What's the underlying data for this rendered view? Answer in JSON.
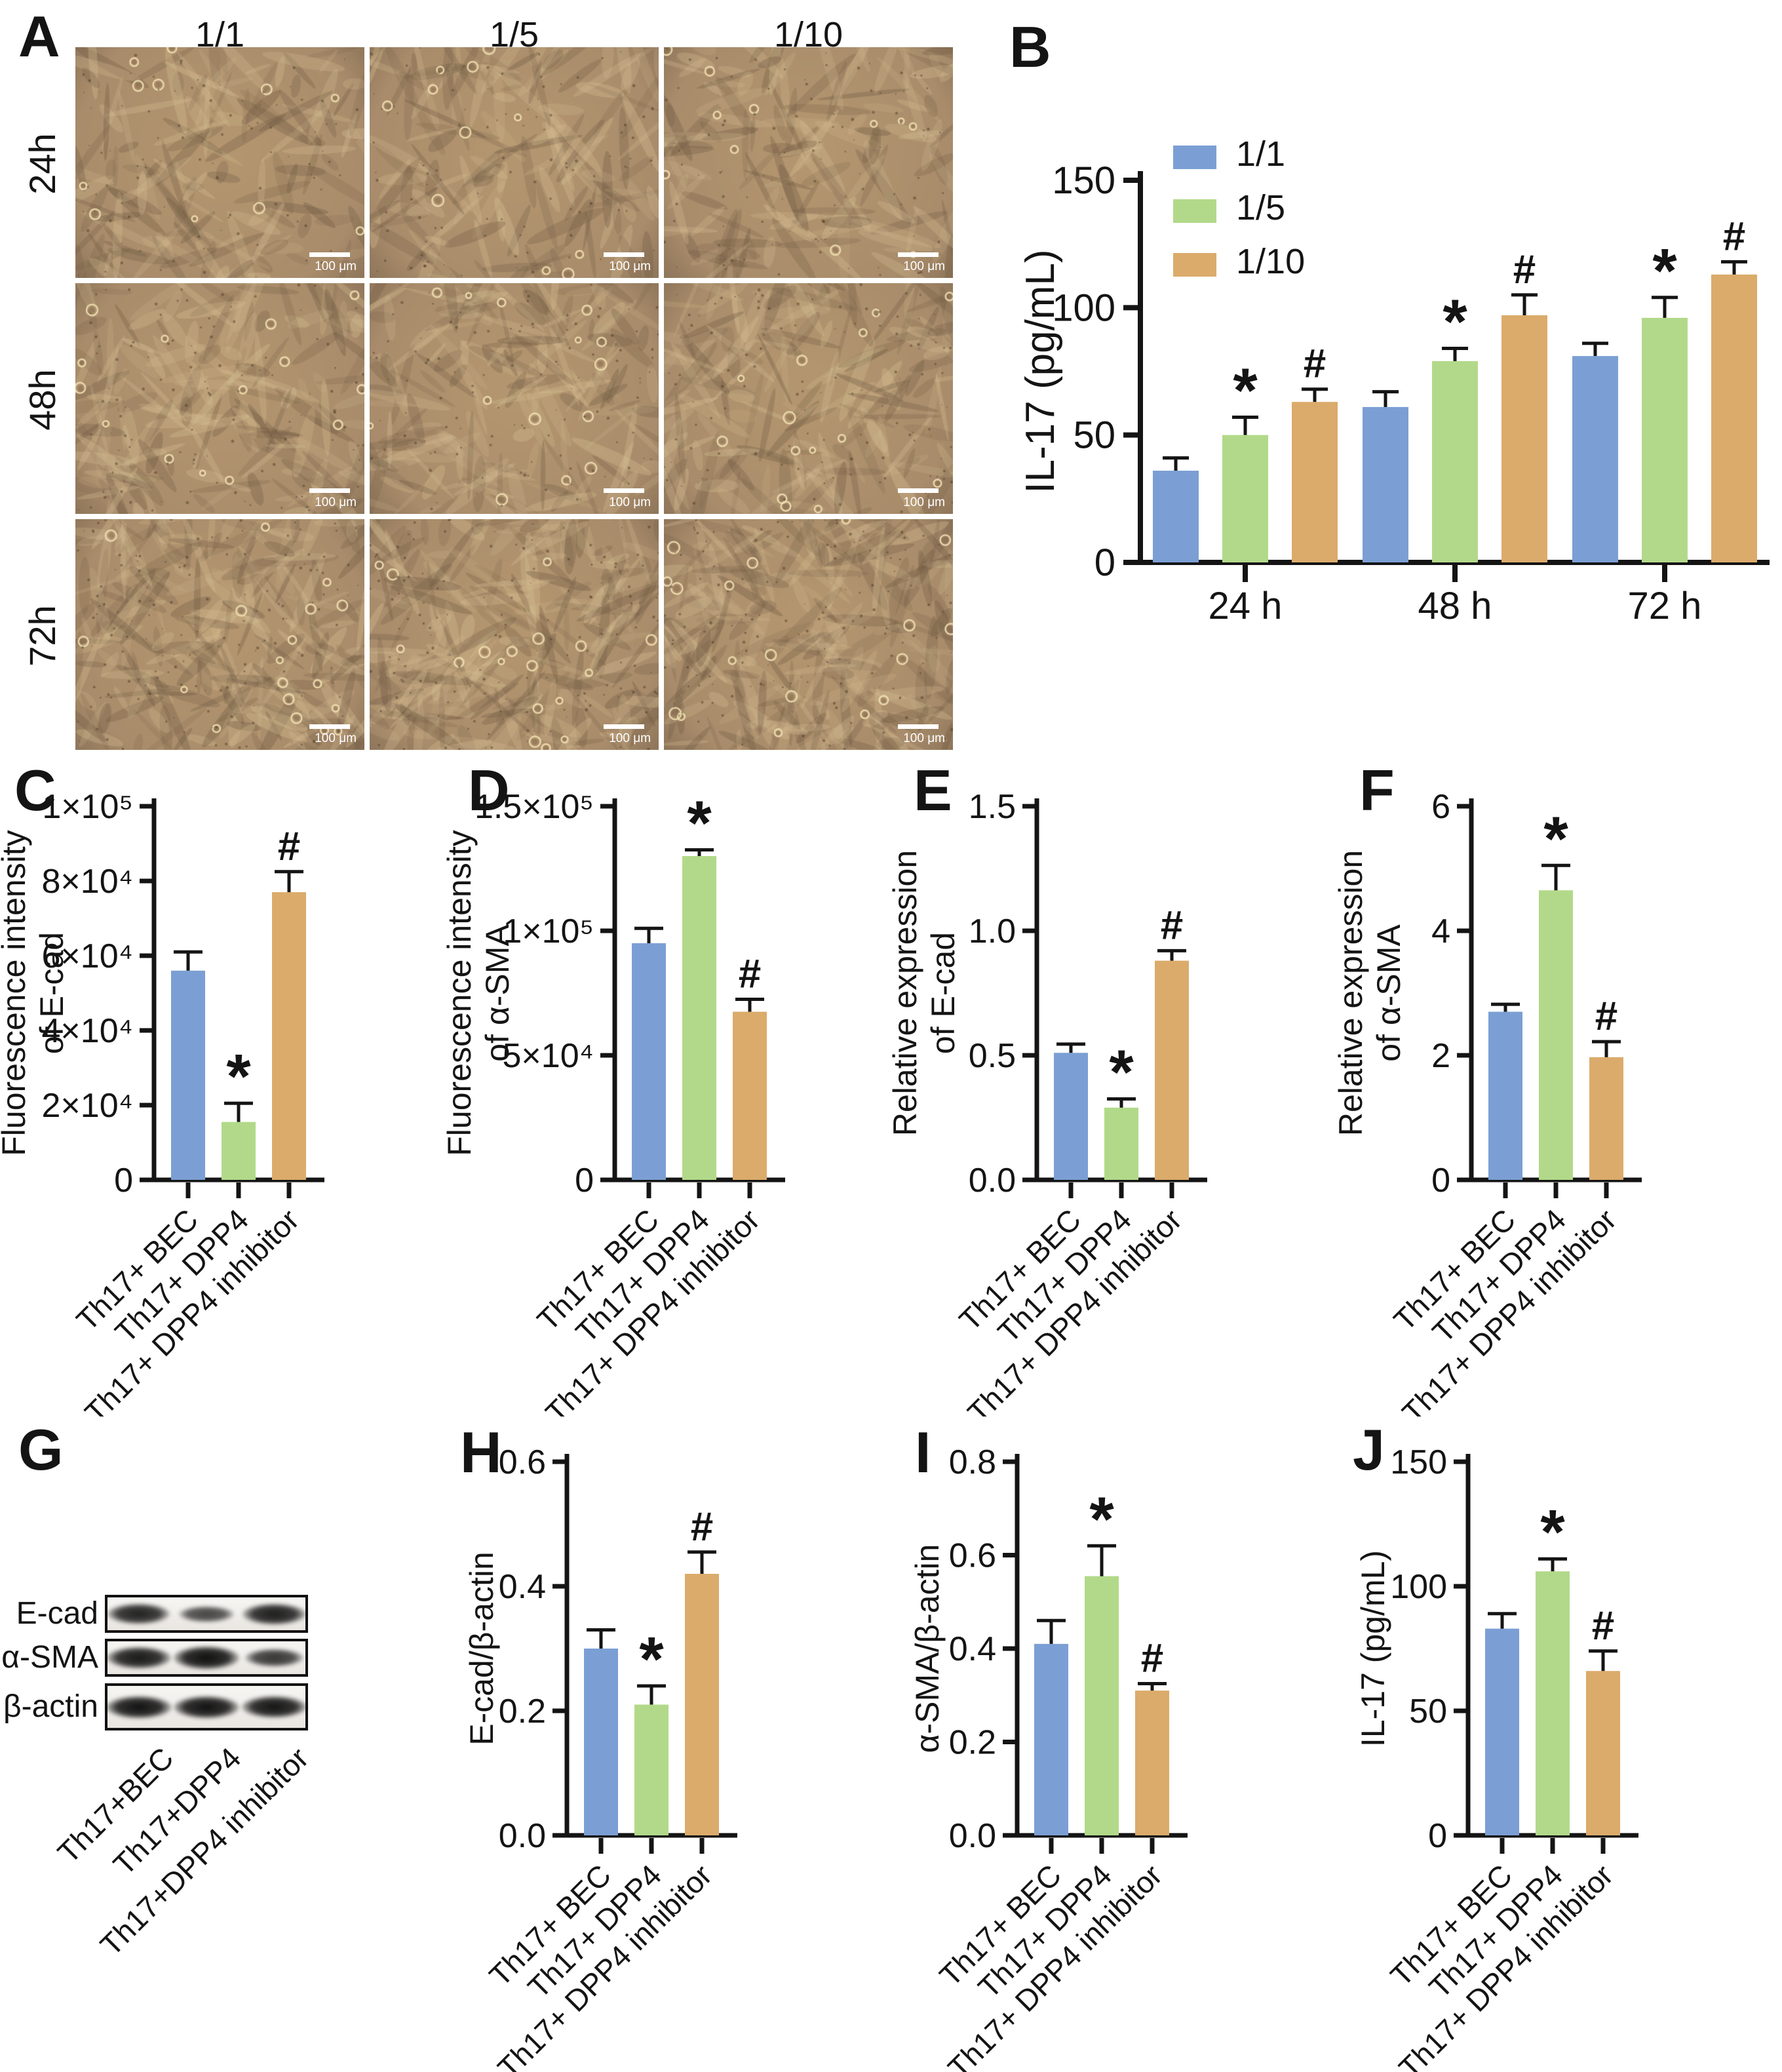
{
  "figure": {
    "background": "#ffffff"
  },
  "colors": {
    "group_blue": "#7B9FD4",
    "group_green": "#B2D989",
    "group_orange": "#DBAB6B",
    "axis": "#141414",
    "micro_base": "#a98c6b",
    "micro_dark": "#6e5942",
    "micro_light": "#d8c195"
  },
  "panel_a": {
    "label": "A",
    "column_headers": [
      "1/1",
      "1/5",
      "1/10"
    ],
    "row_labels": [
      "24h",
      "48h",
      "72h"
    ],
    "scale_bar_text": "100 μm"
  },
  "panel_g": {
    "label": "G",
    "row_labels": [
      "E-cad",
      "α-SMA",
      "β-actin"
    ],
    "lane_labels": [
      "Th17+BEC",
      "Th17+DPP4",
      "Th17+DPP4 inhibitor"
    ],
    "band_intensities": [
      [
        0.8,
        0.45,
        0.85
      ],
      [
        0.88,
        0.97,
        0.6
      ],
      [
        0.95,
        0.95,
        0.93
      ]
    ]
  },
  "chart_data": [
    {
      "id": "B",
      "label": "B",
      "type": "bar",
      "grouped": true,
      "ylabel": [
        "IL-17 (pg/mL)"
      ],
      "ylim": [
        0,
        150
      ],
      "ytick_values": [
        0,
        50,
        100,
        150
      ],
      "ytick_labels": [
        "0",
        "50",
        "100",
        "150"
      ],
      "categories": [
        "24 h",
        "48 h",
        "72 h"
      ],
      "legend_position": "top-left",
      "series": [
        {
          "name": "1/1",
          "color": "group_blue",
          "values": [
            36,
            61,
            81
          ],
          "errors": [
            5,
            6,
            5
          ],
          "annotations": [
            "",
            "",
            ""
          ]
        },
        {
          "name": "1/5",
          "color": "group_green",
          "values": [
            50,
            79,
            96
          ],
          "errors": [
            7,
            5,
            8
          ],
          "annotations": [
            "*",
            "*",
            "*"
          ]
        },
        {
          "name": "1/10",
          "color": "group_orange",
          "values": [
            63,
            97,
            113
          ],
          "errors": [
            5,
            8,
            5
          ],
          "annotations": [
            "#",
            "#",
            "#"
          ]
        }
      ]
    },
    {
      "id": "C",
      "label": "C",
      "type": "bar",
      "ylabel": [
        "Fluorescence intensity",
        "of E-cad"
      ],
      "ylim": [
        0,
        100000
      ],
      "ytick_values": [
        0,
        20000,
        40000,
        60000,
        80000,
        100000
      ],
      "ytick_labels": [
        "0",
        "2×10⁴",
        "4×10⁴",
        "6×10⁴",
        "8×10⁴",
        "1×10⁵"
      ],
      "categories": [
        "Th17+ BEC",
        "Th17+ DPP4",
        "Th17+ DPP4 inhibitor"
      ],
      "bars": [
        {
          "color": "group_blue",
          "value": 56000,
          "error": 5000,
          "annotation": ""
        },
        {
          "color": "group_green",
          "value": 15500,
          "error": 5000,
          "annotation": "*"
        },
        {
          "color": "group_orange",
          "value": 77000,
          "error": 5500,
          "annotation": "#"
        }
      ]
    },
    {
      "id": "D",
      "label": "D",
      "type": "bar",
      "ylabel": [
        "Fluorescence intensity",
        "of α-SMA"
      ],
      "ylim": [
        0,
        150000
      ],
      "ytick_values": [
        0,
        50000,
        100000,
        150000
      ],
      "ytick_labels": [
        "0",
        "5×10⁴",
        "1×10⁵",
        "1.5×10⁵"
      ],
      "categories": [
        "Th17+ BEC",
        "Th17+ DPP4",
        "Th17+ DPP4 inhibitor"
      ],
      "bars": [
        {
          "color": "group_blue",
          "value": 95000,
          "error": 6000,
          "annotation": ""
        },
        {
          "color": "group_green",
          "value": 130000,
          "error": 2500,
          "annotation": "*"
        },
        {
          "color": "group_orange",
          "value": 67500,
          "error": 5000,
          "annotation": "#"
        }
      ]
    },
    {
      "id": "E",
      "label": "E",
      "type": "bar",
      "ylabel": [
        "Relative expression",
        "of E-cad"
      ],
      "ylim": [
        0,
        1.5
      ],
      "ytick_values": [
        0,
        0.5,
        1.0,
        1.5
      ],
      "ytick_labels": [
        "0.0",
        "0.5",
        "1.0",
        "1.5"
      ],
      "categories": [
        "Th17+ BEC",
        "Th17+ DPP4",
        "Th17+ DPP4 inhibitor"
      ],
      "bars": [
        {
          "color": "group_blue",
          "value": 0.51,
          "error": 0.035,
          "annotation": ""
        },
        {
          "color": "group_green",
          "value": 0.29,
          "error": 0.035,
          "annotation": "*"
        },
        {
          "color": "group_orange",
          "value": 0.88,
          "error": 0.04,
          "annotation": "#"
        }
      ]
    },
    {
      "id": "F",
      "label": "F",
      "type": "bar",
      "ylabel": [
        "Relative expression",
        "of α-SMA"
      ],
      "ylim": [
        0,
        6
      ],
      "ytick_values": [
        0,
        2,
        4,
        6
      ],
      "ytick_labels": [
        "0",
        "2",
        "4",
        "6"
      ],
      "categories": [
        "Th17+ BEC",
        "Th17+ DPP4",
        "Th17+ DPP4 inhibitor"
      ],
      "bars": [
        {
          "color": "group_blue",
          "value": 2.7,
          "error": 0.12,
          "annotation": ""
        },
        {
          "color": "group_green",
          "value": 4.65,
          "error": 0.4,
          "annotation": "*"
        },
        {
          "color": "group_orange",
          "value": 1.97,
          "error": 0.25,
          "annotation": "#"
        }
      ]
    },
    {
      "id": "H",
      "label": "H",
      "type": "bar",
      "ylabel": [
        "E-cad/β-actin"
      ],
      "ylim": [
        0,
        0.6
      ],
      "ytick_values": [
        0,
        0.2,
        0.4,
        0.6
      ],
      "ytick_labels": [
        "0.0",
        "0.2",
        "0.4",
        "0.6"
      ],
      "categories": [
        "Th17+ BEC",
        "Th17+ DPP4",
        "Th17+ DPP4 inhibitor"
      ],
      "bars": [
        {
          "color": "group_blue",
          "value": 0.3,
          "error": 0.03,
          "annotation": ""
        },
        {
          "color": "group_green",
          "value": 0.21,
          "error": 0.03,
          "annotation": "*"
        },
        {
          "color": "group_orange",
          "value": 0.42,
          "error": 0.035,
          "annotation": "#"
        }
      ]
    },
    {
      "id": "I",
      "label": "I",
      "type": "bar",
      "ylabel": [
        "α-SMA/β-actin"
      ],
      "ylim": [
        0,
        0.8
      ],
      "ytick_values": [
        0,
        0.2,
        0.4,
        0.6,
        0.8
      ],
      "ytick_labels": [
        "0.0",
        "0.2",
        "0.4",
        "0.6",
        "0.8"
      ],
      "categories": [
        "Th17+ BEC",
        "Th17+ DPP4",
        "Th17+ DPP4 inhibitor"
      ],
      "bars": [
        {
          "color": "group_blue",
          "value": 0.41,
          "error": 0.05,
          "annotation": ""
        },
        {
          "color": "group_green",
          "value": 0.555,
          "error": 0.065,
          "annotation": "*"
        },
        {
          "color": "group_orange",
          "value": 0.31,
          "error": 0.015,
          "annotation": "#"
        }
      ]
    },
    {
      "id": "J",
      "label": "J",
      "type": "bar",
      "ylabel": [
        "IL-17 (pg/mL)"
      ],
      "ylim": [
        0,
        150
      ],
      "ytick_values": [
        0,
        50,
        100,
        150
      ],
      "ytick_labels": [
        "0",
        "50",
        "100",
        "150"
      ],
      "categories": [
        "Th17+ BEC",
        "Th17+ DPP4",
        "Th17+ DPP4 inhibitor"
      ],
      "bars": [
        {
          "color": "group_blue",
          "value": 83,
          "error": 6,
          "annotation": ""
        },
        {
          "color": "group_green",
          "value": 106,
          "error": 5,
          "annotation": "*"
        },
        {
          "color": "group_orange",
          "value": 66,
          "error": 8,
          "annotation": "#"
        }
      ]
    }
  ]
}
